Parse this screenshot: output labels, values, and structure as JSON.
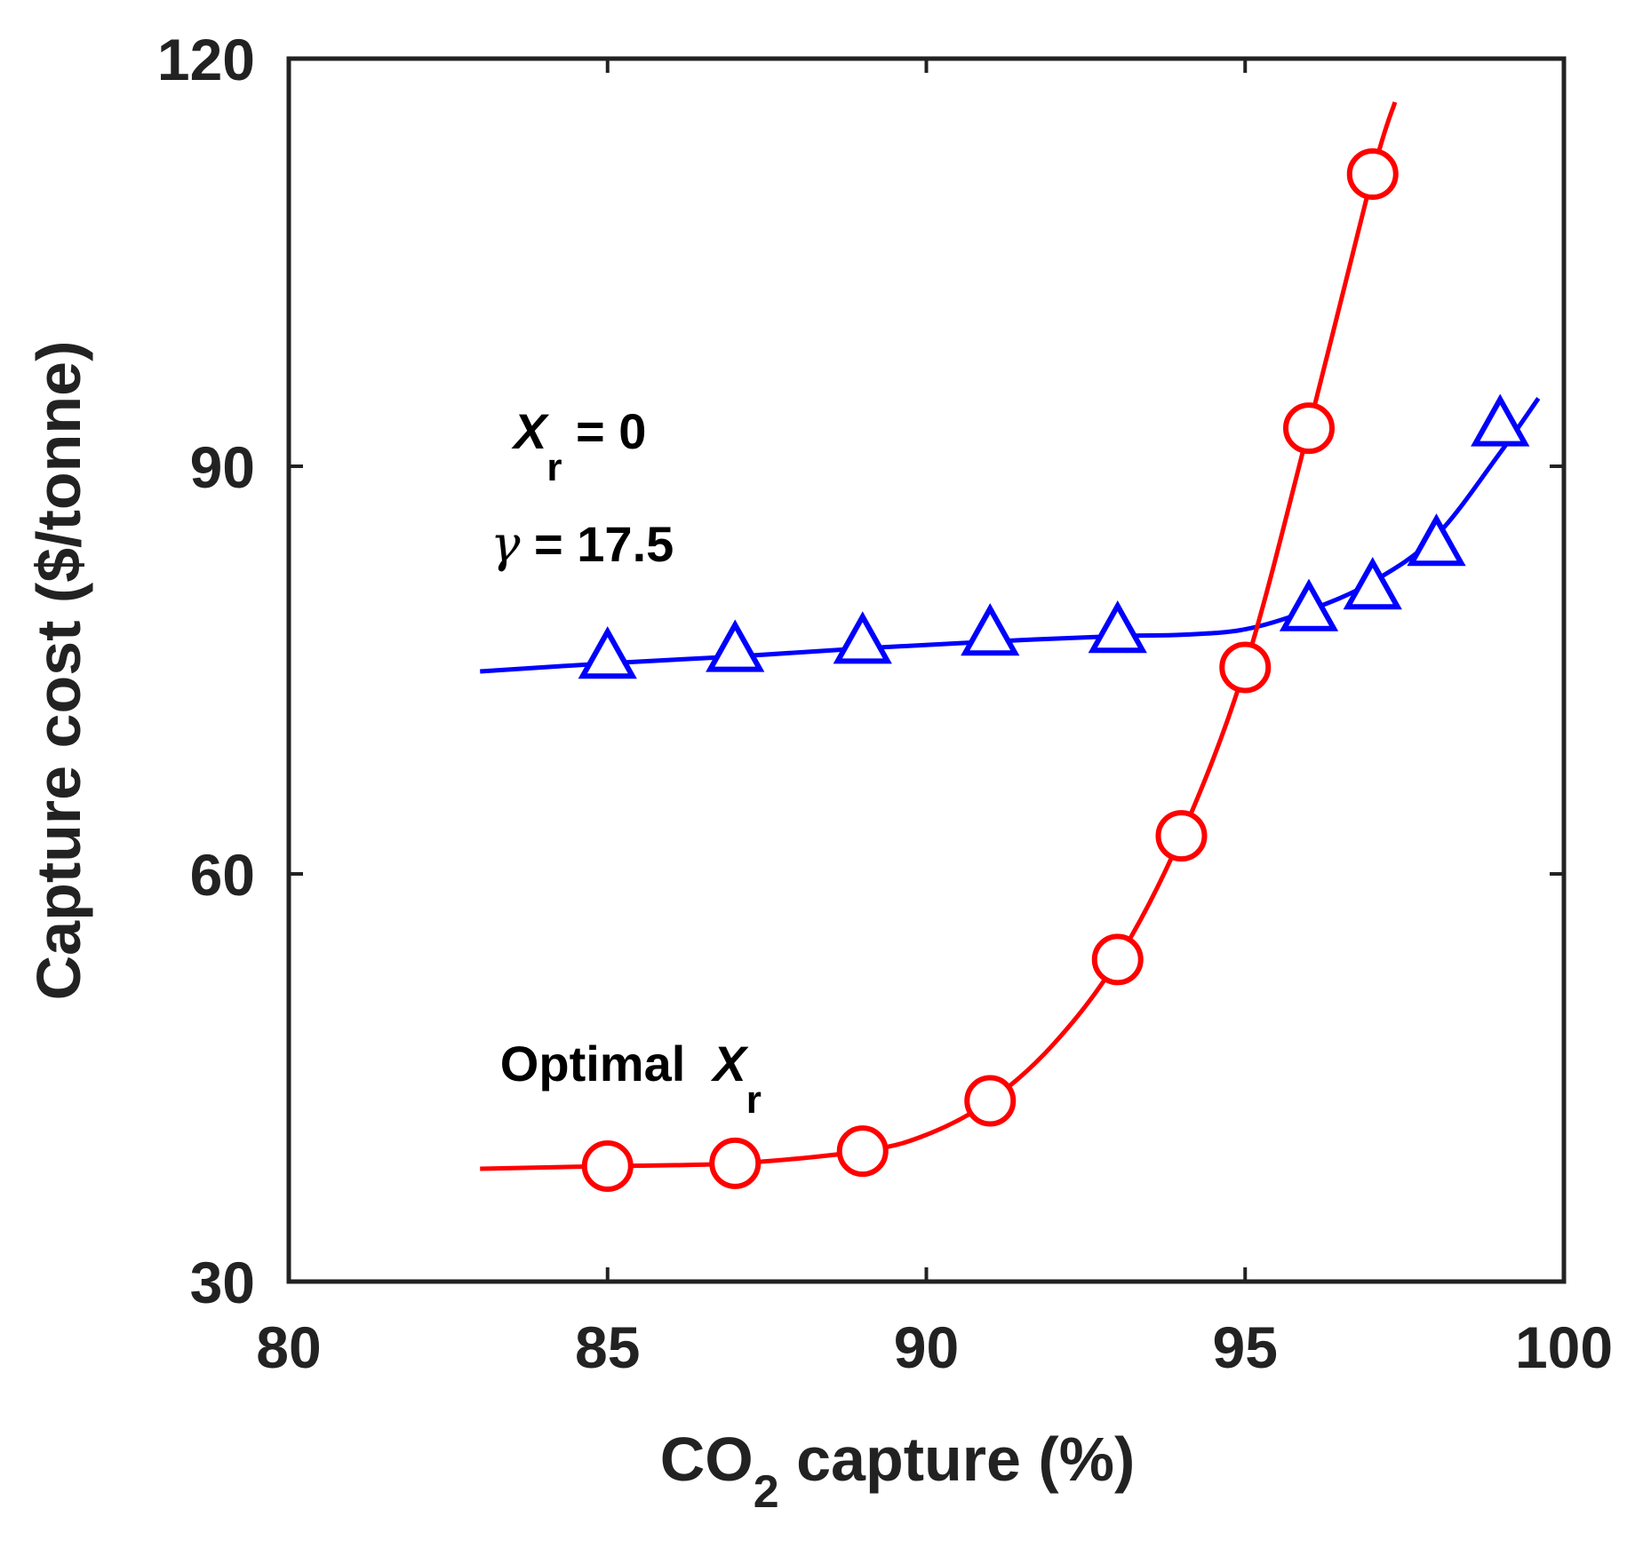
{
  "chart_data": {
    "type": "line",
    "title": "",
    "xlabel": {
      "main": "CO",
      "sub": "2",
      "rest": " capture (%)"
    },
    "ylabel": "Capture cost ($/tonne)",
    "xlim": [
      80,
      100
    ],
    "ylim": [
      30,
      120
    ],
    "xticks": [
      80,
      85,
      90,
      95,
      100
    ],
    "xtick_labels": [
      "80",
      "85",
      "90",
      "95",
      "100"
    ],
    "yticks": [
      30,
      60,
      90,
      120
    ],
    "ytick_labels": [
      "30",
      "60",
      "90",
      "120"
    ],
    "grid": false,
    "series": [
      {
        "name": "Xr = 0",
        "color": "#0000ff",
        "marker": "triangle",
        "curve": [
          [
            83,
            74.9
          ],
          [
            85,
            75.5
          ],
          [
            87,
            76.0
          ],
          [
            89,
            76.6
          ],
          [
            91,
            77.1
          ],
          [
            93,
            77.5
          ],
          [
            94,
            77.6
          ],
          [
            95,
            78.0
          ],
          [
            96,
            79.4
          ],
          [
            97,
            81.5
          ],
          [
            98,
            84.9
          ],
          [
            99,
            91.0
          ],
          [
            99.6,
            95.0
          ]
        ],
        "points": {
          "x": [
            85,
            87,
            89,
            91,
            93,
            96,
            97,
            98,
            99
          ],
          "y": [
            75.8,
            76.3,
            76.9,
            77.5,
            77.7,
            79.3,
            80.9,
            84.1,
            92.9
          ]
        }
      },
      {
        "name": "Optimal Xr",
        "color": "#ff0000",
        "marker": "circle",
        "curve": [
          [
            83,
            38.3
          ],
          [
            85,
            38.5
          ],
          [
            87,
            38.7
          ],
          [
            89,
            39.6
          ],
          [
            90,
            40.8
          ],
          [
            91,
            43.3
          ],
          [
            92,
            47.5
          ],
          [
            93,
            53.7
          ],
          [
            94,
            62.8
          ],
          [
            95,
            75.2
          ],
          [
            96,
            92.8
          ],
          [
            97,
            111.5
          ],
          [
            97.35,
            116.8
          ]
        ],
        "points": {
          "x": [
            85,
            87,
            89,
            91,
            93,
            94,
            95,
            96,
            97
          ],
          "y": [
            38.5,
            38.7,
            39.6,
            43.3,
            53.7,
            62.8,
            75.2,
            92.8,
            111.5
          ]
        }
      }
    ],
    "annotations": {
      "xr0": {
        "symbol": "X",
        "sub": "r",
        "rest": " = 0"
      },
      "gamma": {
        "symbol": "γ",
        "rest": " = 17.5"
      },
      "optimal": {
        "prefix": "Optimal  ",
        "symbol": "X",
        "sub": "r"
      }
    }
  }
}
